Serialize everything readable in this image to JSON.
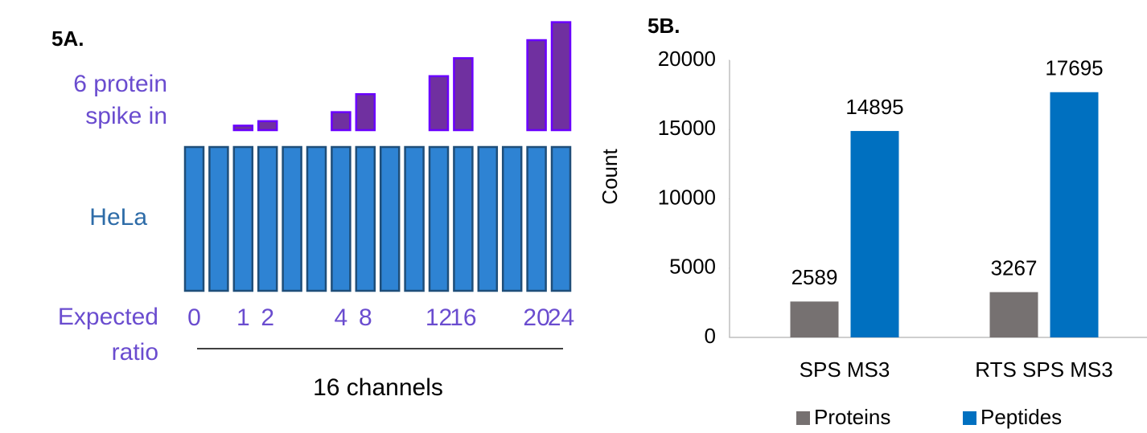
{
  "chart_data": [
    {
      "type": "spike-in",
      "title": "5A.",
      "spike_label": [
        "6 protein",
        "spike in"
      ],
      "base_label": "HeLa",
      "ratio_label": [
        "Expected",
        "ratio"
      ],
      "channels_label": "16 channels",
      "ratios": [
        0,
        null,
        1,
        2,
        null,
        null,
        4,
        8,
        null,
        null,
        12,
        16,
        null,
        null,
        20,
        24
      ],
      "spike_color": "#7030a0",
      "base_color": "#2e83d3"
    },
    {
      "type": "bar",
      "title": "5B.",
      "ylabel": "Count",
      "categories": [
        "SPS MS3",
        "RTS SPS MS3"
      ],
      "series": [
        {
          "name": "Proteins",
          "color": "#767171",
          "values": [
            2589,
            3267
          ]
        },
        {
          "name": "Peptides",
          "color": "#0070c0",
          "values": [
            14895,
            17695
          ]
        }
      ],
      "ylim": [
        0,
        20000
      ],
      "yticks": [
        0,
        5000,
        10000,
        15000,
        20000
      ],
      "legend": "bottom",
      "grid": false
    }
  ]
}
